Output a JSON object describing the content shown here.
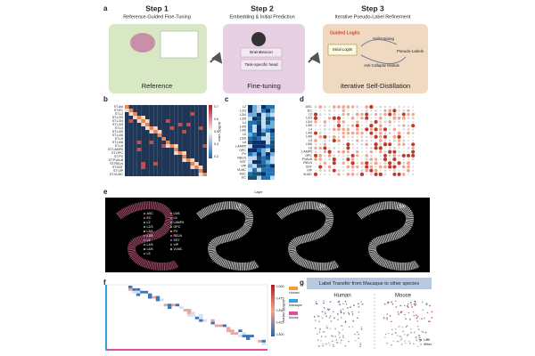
{
  "panel_a": {
    "label": "a",
    "step1": {
      "title": "Step 1",
      "subtitle": "Reference-Guided Fine-Tuning",
      "caption": "Reference"
    },
    "step2": {
      "title": "Step 2",
      "subtitle": "Embedding & Initial Prediction",
      "model": "BrainBeacon",
      "head": "Task-specific head",
      "caption": "Fine-tuning"
    },
    "step3": {
      "title": "Step 3",
      "subtitle": "Iterative Pseudo-Label Refinement",
      "guided": "Guided Logits",
      "initial": "Initial Logits",
      "self_training": "Self-training",
      "pseudo": "Pseudo-Labels",
      "anti": "Anti-Collapse Module",
      "caption": "Iterative Self-Distillation"
    }
  },
  "panel_b": {
    "label": "b",
    "rows": [
      "ST.Ast",
      "ST.EC",
      "ST.L2",
      "ST.L2/3",
      "ST.L3/4",
      "ST.L3/5",
      "ST.L4",
      "ST.L4/5",
      "ST.L4/6",
      "ST.L5",
      "ST.L5/6",
      "ST.L6",
      "ST.LAMP5",
      "ST.OPC",
      "ST.PV",
      "ST.PVALB",
      "ST.RELN",
      "ST.SST",
      "ST.VIP",
      "ST.VLMC"
    ],
    "colorbar_title": "AUROC value",
    "colorbar_ticks": [
      "0.7",
      "0.6",
      "0.5",
      "0.4",
      "0.3"
    ]
  },
  "panel_c": {
    "label": "c",
    "rows": [
      "L2",
      "L2/3",
      "L3/4",
      "L3/5",
      "L4",
      "L4/5",
      "L4/6",
      "L5",
      "L5/6",
      "L6",
      "LAMP5",
      "OPC",
      "PV",
      "RELN",
      "SST",
      "VIP",
      "VLMC",
      "ASC",
      "EC"
    ],
    "x_title": "Layer"
  },
  "panel_d": {
    "label": "d",
    "rows": [
      "ASC",
      "EC",
      "L2",
      "L2/3",
      "L3/4",
      "L3/5",
      "L4",
      "L4/5",
      "L4/6",
      "L5",
      "L5/6",
      "L6",
      "LAMP5",
      "OPC",
      "PVALB",
      "RELN",
      "SST",
      "VIP",
      "VLMC"
    ]
  },
  "panel_e": {
    "label": "e",
    "legend": [
      "ASC",
      "EC",
      "L2",
      "L2/3",
      "L3/4",
      "L3/5",
      "L4",
      "L4/5",
      "L4/6",
      "L5",
      "L5/6",
      "L6",
      "LAMP5",
      "OPC",
      "PV",
      "RELN",
      "SST",
      "VIP",
      "VLMC"
    ],
    "titles": [
      "L2",
      "L3/4",
      "L5/6"
    ]
  },
  "panel_f": {
    "label": "f",
    "colorbar_title": "AUROC Values",
    "colorbar_ticks": [
      "0.500",
      "0.475",
      "0.450",
      "0.425",
      "0.400"
    ],
    "legend": [
      "Human",
      "Macaque",
      "Mouse"
    ]
  },
  "panel_g": {
    "label": "g",
    "title": "Label Transfer from Macaque to other species",
    "human": "Human",
    "mouse": "Mouse",
    "legend": [
      "L4/5",
      "Other"
    ]
  }
}
